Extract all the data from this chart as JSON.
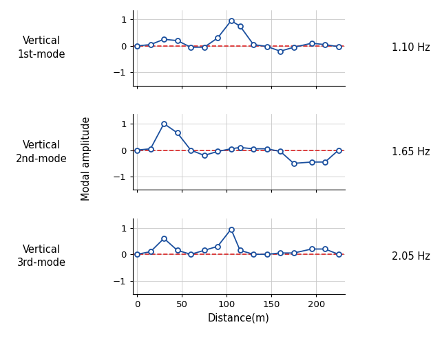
{
  "mode1": {
    "label": "Vertical\n1st-mode",
    "freq": "1.10 Hz",
    "x": [
      0,
      15,
      30,
      45,
      60,
      75,
      90,
      105,
      115,
      130,
      145,
      160,
      175,
      195,
      210,
      225
    ],
    "y": [
      0.0,
      0.05,
      0.25,
      0.2,
      -0.05,
      -0.05,
      0.3,
      0.95,
      0.75,
      0.05,
      -0.02,
      -0.2,
      -0.05,
      0.1,
      0.05,
      -0.03
    ]
  },
  "mode2": {
    "label": "Vertical\n2nd-mode",
    "freq": "1.65 Hz",
    "x": [
      0,
      15,
      30,
      45,
      60,
      75,
      90,
      105,
      115,
      130,
      145,
      160,
      175,
      195,
      210,
      225
    ],
    "y": [
      0.0,
      0.05,
      1.0,
      0.65,
      0.0,
      -0.2,
      -0.05,
      0.05,
      0.1,
      0.05,
      0.05,
      -0.05,
      -0.5,
      -0.45,
      -0.45,
      0.0
    ]
  },
  "mode3": {
    "label": "Vertical\n3rd-mode",
    "freq": "2.05 Hz",
    "x": [
      0,
      15,
      30,
      45,
      60,
      75,
      90,
      105,
      115,
      130,
      145,
      160,
      175,
      195,
      210,
      225
    ],
    "y": [
      0.0,
      0.1,
      0.6,
      0.15,
      0.0,
      0.15,
      0.3,
      0.95,
      0.15,
      0.0,
      0.0,
      0.05,
      0.05,
      0.2,
      0.2,
      0.0
    ]
  },
  "line_color": "#1a4f9e",
  "dashed_color": "#dd2222",
  "bg_color": "#ffffff",
  "grid_color": "#c8c8c8",
  "xlabel": "Distance(m)",
  "ylabel": "Modal amplitude",
  "xlim": [
    -5,
    232
  ],
  "ylim": [
    -1.5,
    1.35
  ],
  "yticks": [
    -1,
    0,
    1
  ],
  "xticks": [
    0,
    50,
    100,
    150,
    200
  ]
}
